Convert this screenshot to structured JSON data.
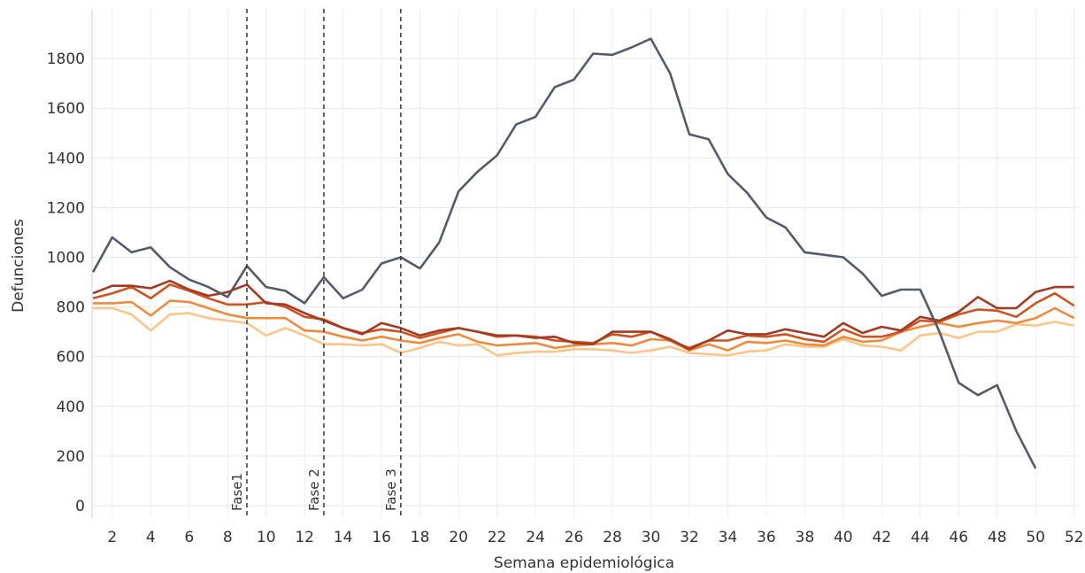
{
  "chart_data": {
    "type": "line",
    "x": [
      1,
      2,
      3,
      4,
      5,
      6,
      7,
      8,
      9,
      10,
      11,
      12,
      13,
      14,
      15,
      16,
      17,
      18,
      19,
      20,
      21,
      22,
      23,
      24,
      25,
      26,
      27,
      28,
      29,
      30,
      31,
      32,
      33,
      34,
      35,
      36,
      37,
      38,
      39,
      40,
      41,
      42,
      43,
      44,
      45,
      46,
      47,
      48,
      49,
      50,
      51,
      52
    ],
    "x_label": "Semana epidemiológica",
    "y_label": "Defunciones",
    "xlim": [
      0.95,
      52.2
    ],
    "xticks": [
      2,
      4,
      6,
      8,
      10,
      12,
      14,
      16,
      18,
      20,
      22,
      24,
      26,
      28,
      30,
      32,
      34,
      36,
      38,
      40,
      42,
      44,
      46,
      48,
      50,
      52
    ],
    "ylim": [
      -50,
      2000
    ],
    "yticks": [
      0,
      200,
      400,
      600,
      800,
      1000,
      1200,
      1400,
      1600,
      1800
    ],
    "grid": true,
    "series": [
      {
        "color": "#fbc48a",
        "values": [
          795,
          795,
          770,
          705,
          770,
          775,
          755,
          745,
          735,
          685,
          715,
          685,
          650,
          650,
          645,
          650,
          615,
          635,
          660,
          645,
          650,
          605,
          615,
          620,
          620,
          630,
          630,
          625,
          615,
          625,
          640,
          615,
          610,
          605,
          620,
          625,
          650,
          640,
          640,
          670,
          645,
          640,
          625,
          685,
          695,
          675,
          700,
          700,
          730,
          725,
          740,
          725
        ]
      },
      {
        "color": "#ee8a3c",
        "values": [
          815,
          815,
          820,
          765,
          825,
          820,
          795,
          770,
          755,
          755,
          755,
          705,
          700,
          680,
          665,
          680,
          665,
          655,
          675,
          690,
          660,
          645,
          650,
          655,
          635,
          645,
          650,
          655,
          645,
          670,
          665,
          625,
          650,
          625,
          660,
          655,
          665,
          650,
          645,
          680,
          660,
          665,
          700,
          720,
          735,
          720,
          735,
          745,
          735,
          755,
          795,
          755
        ]
      },
      {
        "color": "#cf5221",
        "values": [
          835,
          855,
          880,
          835,
          890,
          865,
          835,
          810,
          810,
          820,
          800,
          760,
          750,
          715,
          695,
          710,
          700,
          675,
          695,
          715,
          700,
          680,
          685,
          680,
          665,
          660,
          655,
          690,
          680,
          700,
          665,
          635,
          665,
          665,
          685,
          680,
          690,
          670,
          660,
          710,
          680,
          680,
          700,
          745,
          740,
          770,
          790,
          785,
          760,
          815,
          855,
          805
        ]
      },
      {
        "color": "#a23b23",
        "values": [
          855,
          885,
          885,
          875,
          905,
          870,
          845,
          860,
          890,
          815,
          810,
          775,
          745,
          715,
          690,
          735,
          715,
          685,
          705,
          715,
          700,
          685,
          685,
          675,
          680,
          655,
          650,
          700,
          700,
          700,
          670,
          630,
          665,
          705,
          690,
          690,
          710,
          695,
          680,
          735,
          695,
          720,
          705,
          760,
          745,
          780,
          840,
          795,
          795,
          860,
          880,
          880
        ]
      },
      {
        "color": "#555b66",
        "values": [
          940,
          1080,
          1020,
          1040,
          960,
          910,
          880,
          840,
          965,
          880,
          865,
          815,
          920,
          835,
          870,
          975,
          1000,
          955,
          1060,
          1265,
          1345,
          1410,
          1535,
          1565,
          1685,
          1715,
          1820,
          1815,
          1845,
          1880,
          1740,
          1495,
          1475,
          1335,
          1260,
          1160,
          1120,
          1020,
          1010,
          1000,
          935,
          845,
          870,
          870,
          700,
          495,
          445,
          485,
          300,
          150,
          null,
          null
        ]
      }
    ],
    "annotations": [
      {
        "x": 9,
        "label": "Fase1"
      },
      {
        "x": 13,
        "label": "Fase 2"
      },
      {
        "x": 17,
        "label": "Fase 3"
      }
    ]
  }
}
